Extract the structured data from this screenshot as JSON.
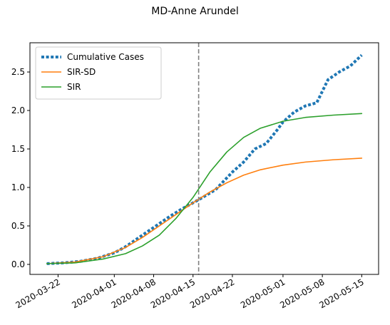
{
  "chart_data": {
    "type": "line",
    "title": "MD-Anne Arundel",
    "xlabel": "",
    "ylabel": "",
    "x_axis": {
      "type": "date",
      "range": [
        "2020-03-17",
        "2020-05-18"
      ]
    },
    "ylim": [
      -0.13,
      2.88
    ],
    "y_ticks": [
      0.0,
      0.5,
      1.0,
      1.5,
      2.0,
      2.5
    ],
    "y_tick_labels": [
      "0.0",
      "0.5",
      "1.0",
      "1.5",
      "2.0",
      "2.5"
    ],
    "x_tick_dates": [
      "2020-03-22",
      "2020-04-01",
      "2020-04-08",
      "2020-04-15",
      "2020-04-22",
      "2020-05-01",
      "2020-05-08",
      "2020-05-15"
    ],
    "x_tick_labels": [
      "2020-03-22",
      "2020-04-01",
      "2020-04-08",
      "2020-04-15",
      "2020-04-22",
      "2020-05-01",
      "2020-05-08",
      "2020-05-15"
    ],
    "vline": {
      "x": "2020-04-16",
      "style": "dashed",
      "color": "#808080"
    },
    "grid": false,
    "legend": {
      "position": "top-left"
    },
    "series": [
      {
        "name": "Cumulative Cases",
        "style": "dotted",
        "color": "#1f77b4",
        "points": [
          [
            "2020-03-20",
            0.01
          ],
          [
            "2020-03-23",
            0.02
          ],
          [
            "2020-03-26",
            0.04
          ],
          [
            "2020-03-29",
            0.08
          ],
          [
            "2020-04-01",
            0.15
          ],
          [
            "2020-04-03",
            0.23
          ],
          [
            "2020-04-05",
            0.33
          ],
          [
            "2020-04-07",
            0.43
          ],
          [
            "2020-04-09",
            0.53
          ],
          [
            "2020-04-11",
            0.63
          ],
          [
            "2020-04-13",
            0.72
          ],
          [
            "2020-04-16",
            0.84
          ],
          [
            "2020-04-19",
            0.97
          ],
          [
            "2020-04-22",
            1.2
          ],
          [
            "2020-04-24",
            1.33
          ],
          [
            "2020-04-26",
            1.5
          ],
          [
            "2020-04-28",
            1.57
          ],
          [
            "2020-04-30",
            1.75
          ],
          [
            "2020-05-01",
            1.85
          ],
          [
            "2020-05-03",
            1.98
          ],
          [
            "2020-05-05",
            2.06
          ],
          [
            "2020-05-07",
            2.1
          ],
          [
            "2020-05-09",
            2.4
          ],
          [
            "2020-05-11",
            2.5
          ],
          [
            "2020-05-13",
            2.58
          ],
          [
            "2020-05-15",
            2.72
          ]
        ]
      },
      {
        "name": "SIR-SD",
        "style": "solid",
        "color": "#ff7f0e",
        "points": [
          [
            "2020-03-20",
            0.01
          ],
          [
            "2020-03-25",
            0.03
          ],
          [
            "2020-03-30",
            0.1
          ],
          [
            "2020-04-03",
            0.22
          ],
          [
            "2020-04-06",
            0.35
          ],
          [
            "2020-04-09",
            0.5
          ],
          [
            "2020-04-12",
            0.65
          ],
          [
            "2020-04-15",
            0.8
          ],
          [
            "2020-04-18",
            0.94
          ],
          [
            "2020-04-21",
            1.06
          ],
          [
            "2020-04-24",
            1.16
          ],
          [
            "2020-04-27",
            1.23
          ],
          [
            "2020-05-01",
            1.29
          ],
          [
            "2020-05-05",
            1.33
          ],
          [
            "2020-05-10",
            1.36
          ],
          [
            "2020-05-15",
            1.38
          ]
        ]
      },
      {
        "name": "SIR",
        "style": "solid",
        "color": "#2ca02c",
        "points": [
          [
            "2020-03-20",
            0.01
          ],
          [
            "2020-03-25",
            0.02
          ],
          [
            "2020-03-30",
            0.07
          ],
          [
            "2020-04-03",
            0.14
          ],
          [
            "2020-04-06",
            0.24
          ],
          [
            "2020-04-09",
            0.38
          ],
          [
            "2020-04-12",
            0.6
          ],
          [
            "2020-04-15",
            0.87
          ],
          [
            "2020-04-18",
            1.2
          ],
          [
            "2020-04-21",
            1.46
          ],
          [
            "2020-04-24",
            1.65
          ],
          [
            "2020-04-27",
            1.77
          ],
          [
            "2020-05-01",
            1.86
          ],
          [
            "2020-05-05",
            1.91
          ],
          [
            "2020-05-10",
            1.94
          ],
          [
            "2020-05-15",
            1.96
          ]
        ]
      }
    ]
  }
}
